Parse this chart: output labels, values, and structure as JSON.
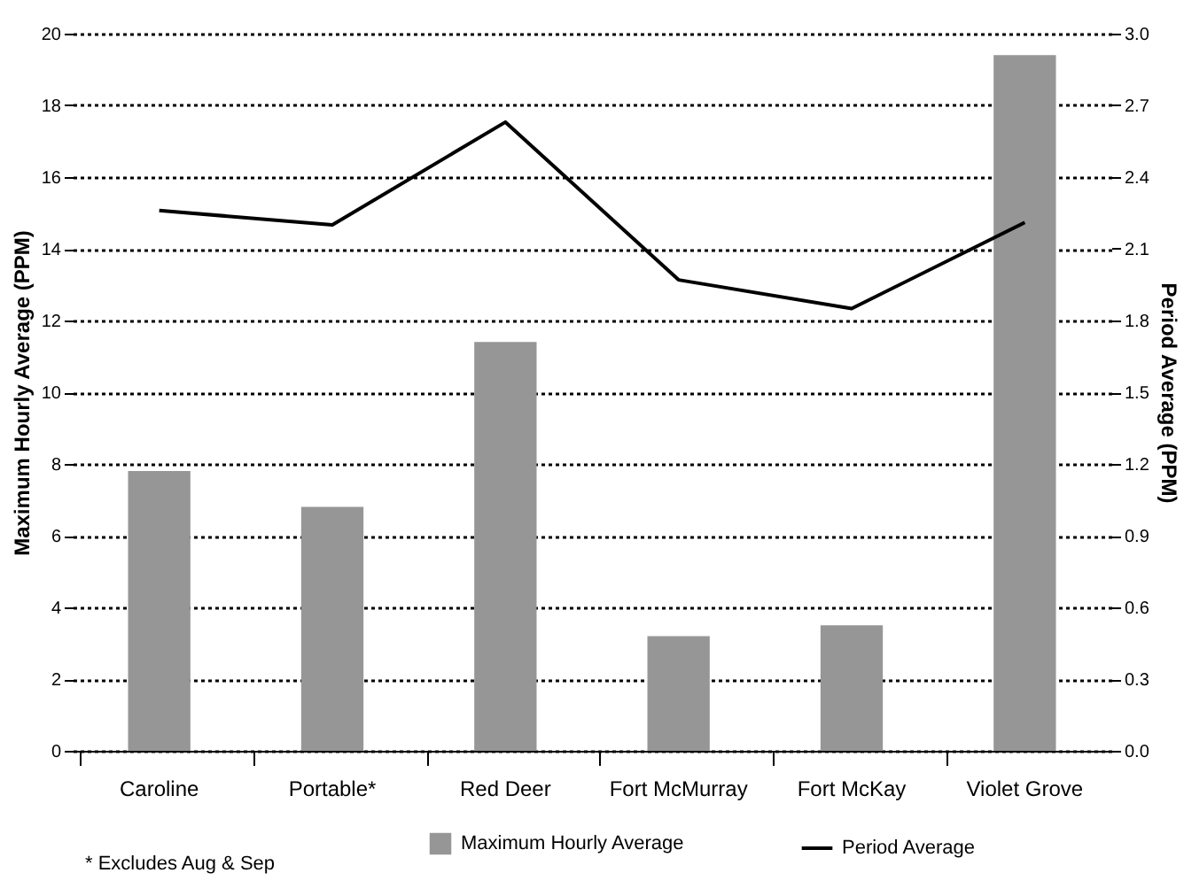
{
  "chart_data": {
    "type": "bar",
    "ylabel": "Maximum Hourly Average (PPM)",
    "y2label": "Period Average (PPM)",
    "categories": [
      "Caroline",
      "Portable*",
      "Red Deer",
      "Fort McMurray",
      "Fort McKay",
      "Violet Grove"
    ],
    "series": [
      {
        "name": "Maximum Hourly Average",
        "color": "#969696",
        "values": [
          7.8,
          6.8,
          11.4,
          3.2,
          3.5,
          19.4
        ]
      },
      {
        "name": "Period Average",
        "type": "line",
        "axis": "y2",
        "color": "#000000",
        "values": [
          2.26,
          2.2,
          2.63,
          1.97,
          1.85,
          2.21
        ]
      }
    ],
    "ylim": [
      0,
      20
    ],
    "yticks": [
      0,
      2,
      4,
      6,
      8,
      10,
      12,
      14,
      16,
      18,
      20
    ],
    "y2lim": [
      0,
      3
    ],
    "y2ticks": [
      {
        "value": 0,
        "label": "0.0"
      },
      0.3,
      0.6,
      0.9,
      1.2,
      1.5,
      1.8,
      2.1,
      2.4,
      2.7,
      {
        "value": 3,
        "label": "3.0"
      }
    ],
    "grid": "y",
    "legend": "bottom",
    "marker": "none",
    "line_style": "solid",
    "annotations": [
      "*  Excludes Aug & Sep"
    ]
  }
}
